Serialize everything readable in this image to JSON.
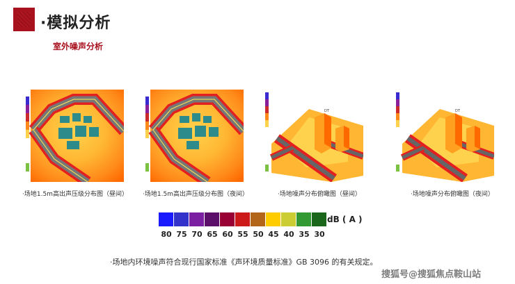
{
  "header": {
    "title": "·模拟分析",
    "subtitle": "室外噪声分析"
  },
  "panels": [
    {
      "caption": "·场地1.5m高出声压级分布图（昼间）",
      "view": "plan"
    },
    {
      "caption": "·场地1.5m高出声压级分布图（夜间）",
      "view": "plan"
    },
    {
      "caption": "·场地噪声分布俯瞰图（昼间）",
      "view": "perspective"
    },
    {
      "caption": "·场地噪声分布俯瞰图（夜间）",
      "view": "perspective"
    }
  ],
  "legend": {
    "unit": "dB ( A )",
    "ticks": [
      "80",
      "75",
      "70",
      "65",
      "60",
      "55",
      "50",
      "45",
      "40",
      "35",
      "30"
    ],
    "colors": [
      "#1a1aff",
      "#3333cc",
      "#7a1fa2",
      "#5b0f6b",
      "#990033",
      "#cc1a1a",
      "#b3661a",
      "#ffcc00",
      "#cccc33",
      "#339933",
      "#1a661a"
    ]
  },
  "note": "·场地内环境噪声符合现行国家标准《声环境质量标准》GB 3096 的有关规定。",
  "watermark": "搜狐号@搜狐焦点鞍山站",
  "colors": {
    "brand": "#a8121e"
  }
}
